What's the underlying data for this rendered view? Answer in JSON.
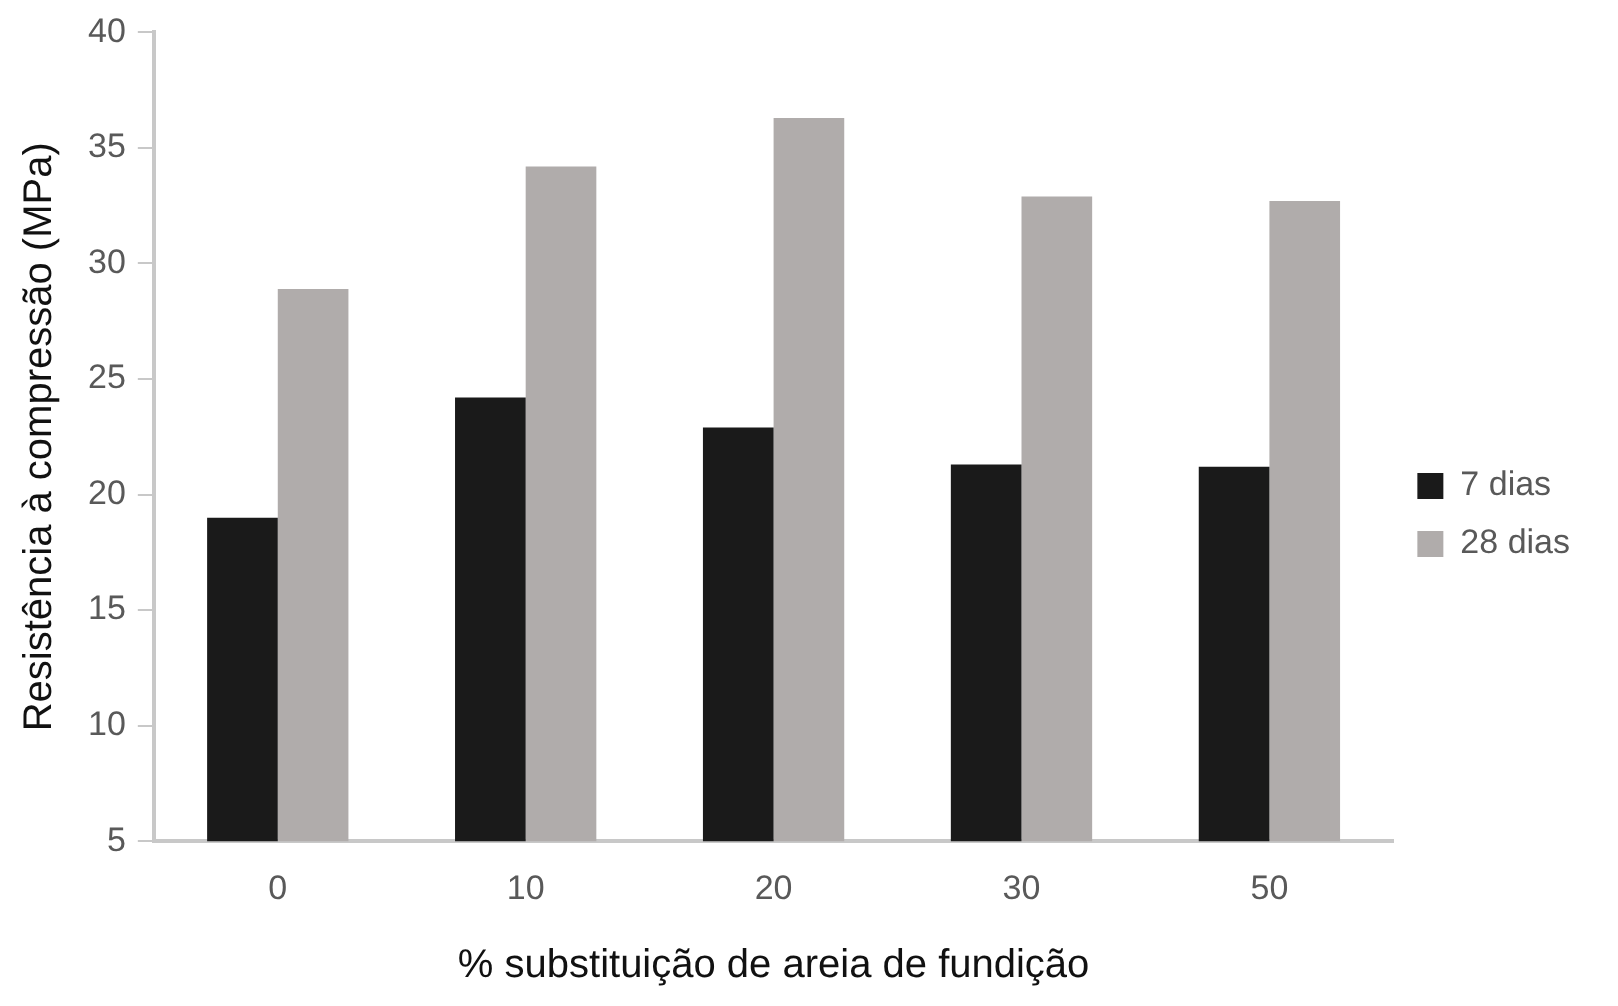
{
  "chart_data": {
    "type": "bar",
    "xlabel": "% substituição de areia de fundição",
    "ylabel": "Resistência à compressão (MPa)",
    "categories": [
      "0",
      "10",
      "20",
      "30",
      "50"
    ],
    "series": [
      {
        "name": "7 dias",
        "color": "#1a1a1a",
        "values": [
          19.0,
          24.2,
          22.9,
          21.3,
          21.2
        ]
      },
      {
        "name": "28 dias",
        "color": "#b0acab",
        "values": [
          28.9,
          34.2,
          36.3,
          32.9,
          32.7
        ]
      }
    ],
    "ylim": [
      5,
      40
    ],
    "yticks": [
      5,
      10,
      15,
      20,
      25,
      30,
      35,
      40
    ],
    "grid": false,
    "legend": "right"
  }
}
